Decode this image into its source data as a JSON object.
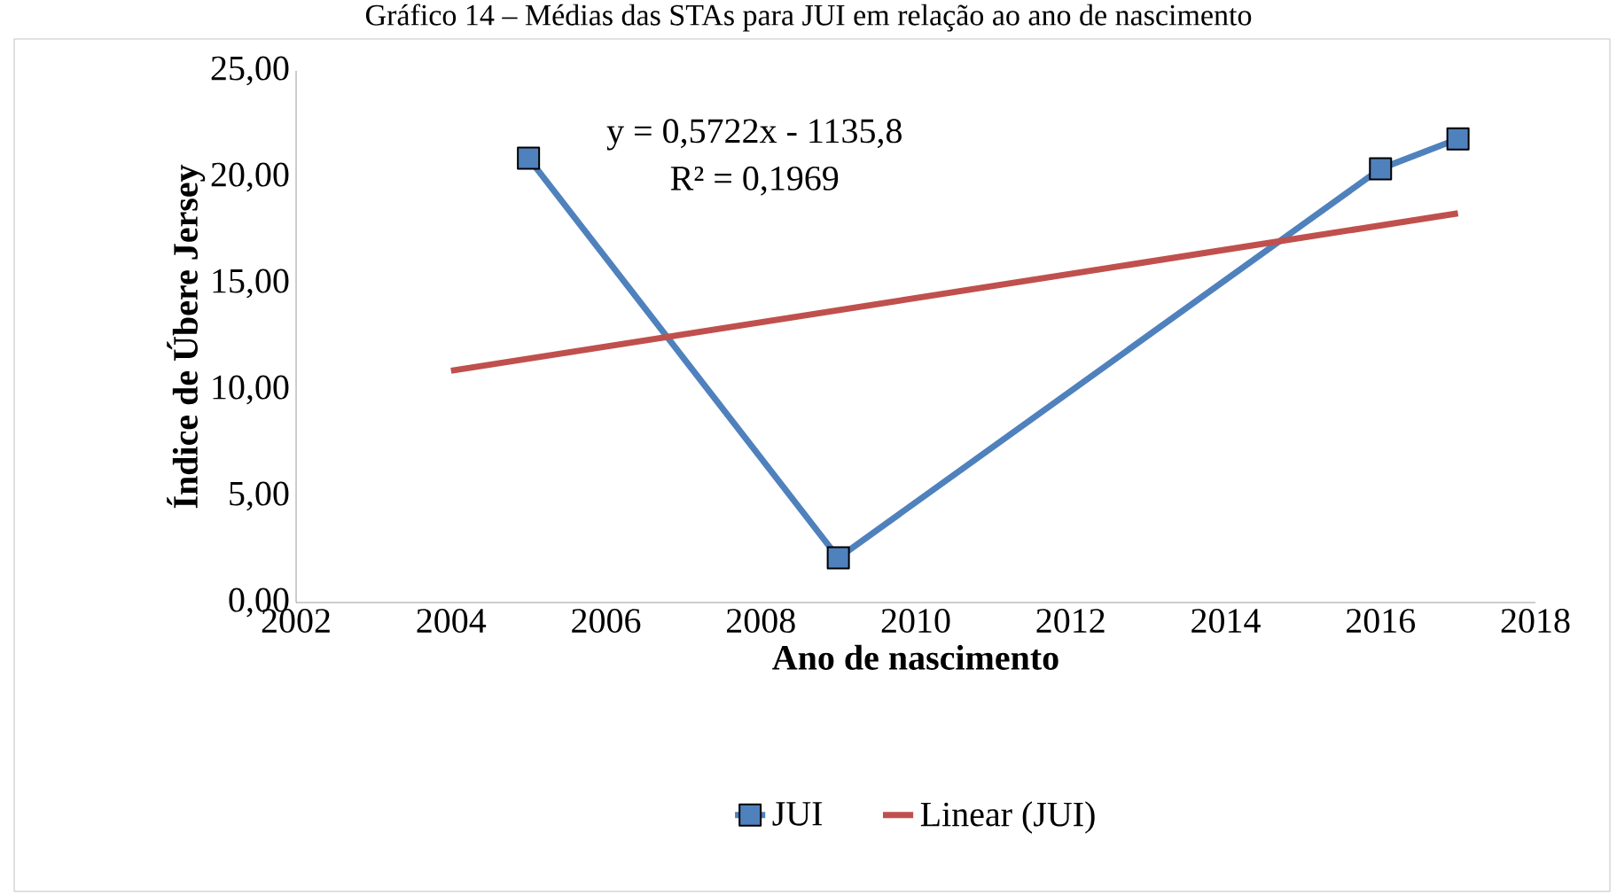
{
  "chart_data": {
    "type": "line",
    "title": "Gráfico 14 – Médias das STAs para JUI em relação ao ano de nascimento",
    "xlabel": "Ano de nascimento",
    "ylabel": "Índice de Úbere Jersey",
    "xlim": [
      2002,
      2018
    ],
    "xticks": [
      2002,
      2004,
      2006,
      2008,
      2010,
      2012,
      2014,
      2016,
      2018
    ],
    "ylim": [
      0,
      25
    ],
    "yticks": [
      {
        "value": 0,
        "label": "0,00"
      },
      {
        "value": 5,
        "label": "5,00"
      },
      {
        "value": 10,
        "label": "10,00"
      },
      {
        "value": 15,
        "label": "15,00"
      },
      {
        "value": 20,
        "label": "20,00"
      },
      {
        "value": 25,
        "label": "25,00"
      }
    ],
    "series": [
      {
        "name": "JUI",
        "color": "#4f81bd",
        "marker": "square",
        "x": [
          2005,
          2009,
          2016,
          2017
        ],
        "values": [
          20.9,
          2.1,
          20.4,
          21.8
        ]
      },
      {
        "name": "Linear (JUI)",
        "color": "#c0504d",
        "marker": "none",
        "x": [
          2004,
          2017
        ],
        "values": [
          10.9,
          18.3
        ]
      }
    ],
    "annotations": [
      "y = 0,5722x - 1135,8",
      "R² = 0,1969"
    ],
    "legend": "bottom",
    "grid": false
  }
}
